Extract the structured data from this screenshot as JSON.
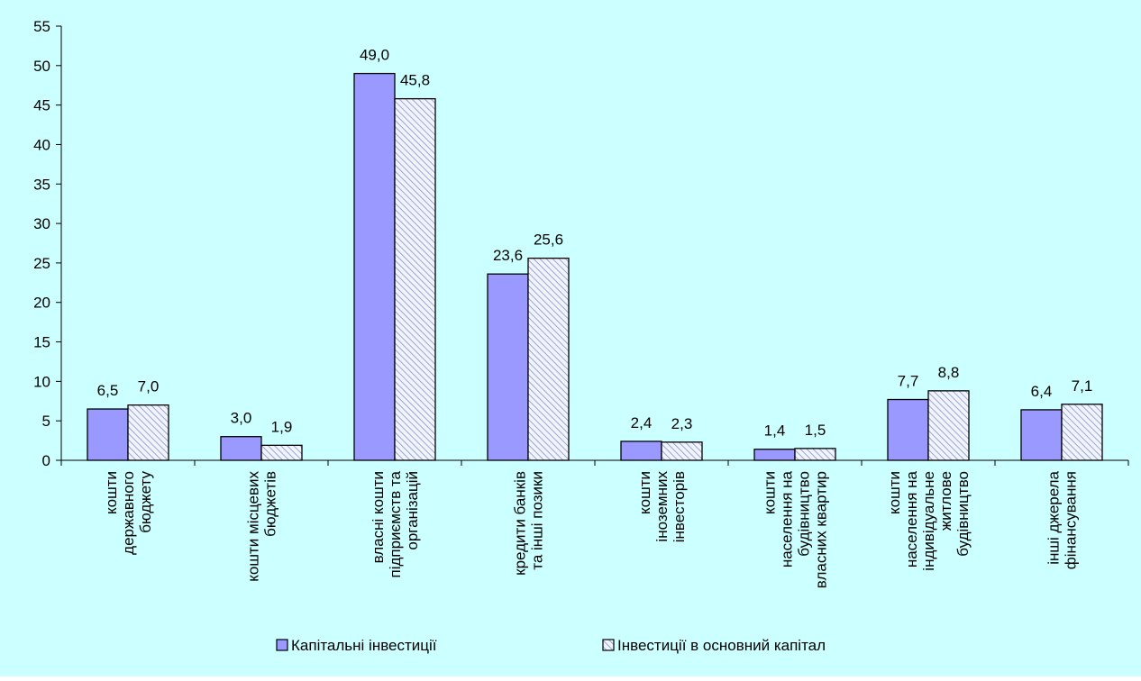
{
  "chart_data": {
    "type": "bar",
    "title": "",
    "xlabel": "",
    "ylabel": "",
    "ylim": [
      0,
      55
    ],
    "yticks": [
      0,
      5,
      10,
      15,
      20,
      25,
      30,
      35,
      40,
      45,
      50,
      55
    ],
    "grid": false,
    "legend_position": "bottom",
    "categories": [
      [
        "кошти",
        "державного",
        "бюджету"
      ],
      [
        "кошти місцевих",
        "бюджетів"
      ],
      [
        "власні кошти",
        "підприємств та",
        "організацій"
      ],
      [
        "кредити банків",
        "та інші позики"
      ],
      [
        "кошти",
        "іноземних",
        "інвесторів"
      ],
      [
        "кошти",
        "населення на",
        "будівництво",
        "власних квартир"
      ],
      [
        "кошти",
        "населення на",
        "індивідуальне",
        "житлове",
        "будівництво"
      ],
      [
        "інші джерела",
        "фінансування"
      ]
    ],
    "series": [
      {
        "name": "Капітальні інвестиції",
        "values": [
          6.5,
          3.0,
          49.0,
          23.6,
          2.4,
          1.4,
          7.7,
          6.4
        ],
        "labels": [
          "6,5",
          "3,0",
          "49,0",
          "23,6",
          "2,4",
          "1,4",
          "7,7",
          "6,4"
        ],
        "color": "#9999ff",
        "pattern": "solid"
      },
      {
        "name": "Інвестиції в основний капітал",
        "values": [
          7.0,
          1.9,
          45.8,
          25.6,
          2.3,
          1.5,
          8.8,
          7.1
        ],
        "labels": [
          "7,0",
          "1,9",
          "45,8",
          "25,6",
          "2,3",
          "1,5",
          "8,8",
          "7,1"
        ],
        "color": "#ccd4f0",
        "pattern": "hatched"
      }
    ],
    "colors": {
      "background": "#ccffff",
      "axis": "#000000"
    }
  }
}
